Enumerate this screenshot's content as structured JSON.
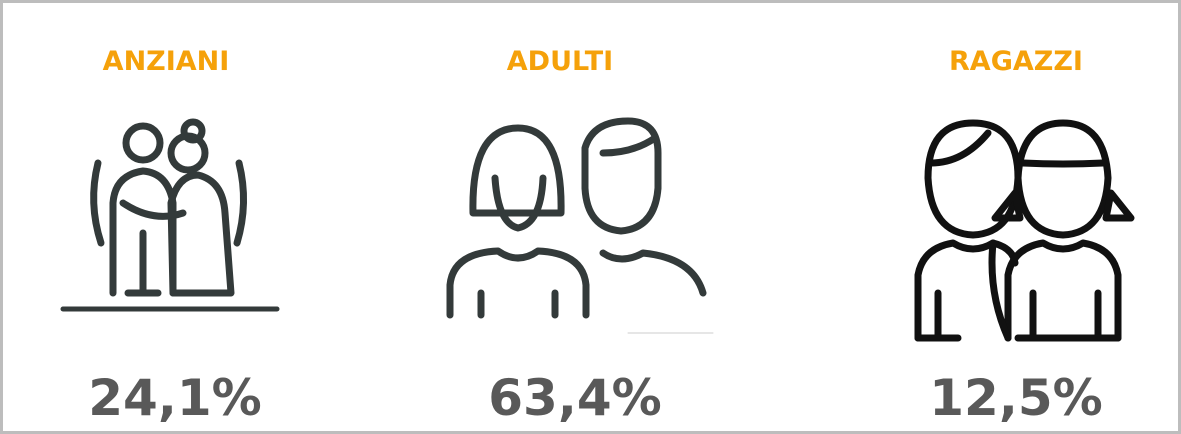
{
  "groups": [
    {
      "title": "ANZIANI",
      "value": "24,1%"
    },
    {
      "title": "ADULTI",
      "value": "63,4%"
    },
    {
      "title": "RAGAZZI",
      "value": "12,5%"
    }
  ]
}
